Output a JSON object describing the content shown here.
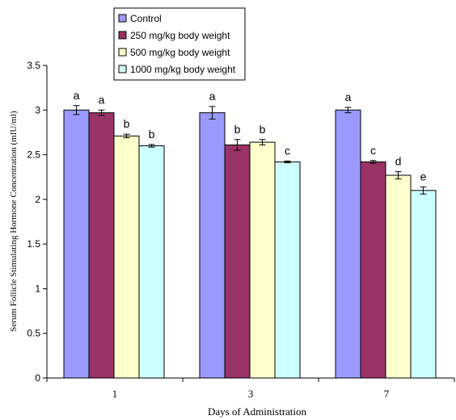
{
  "chart_data": {
    "type": "bar",
    "title": "",
    "xlabel": "Days of Administration",
    "ylabel": "Serum Follicle Stimulating Hormone Concentration (mIU/ml)",
    "ylim": [
      0,
      3.5
    ],
    "yticks": [
      "0",
      "0.5",
      "1",
      "1.5",
      "2",
      "2.5",
      "3",
      "3.5"
    ],
    "categories": [
      "1",
      "3",
      "7"
    ],
    "grid": false,
    "legend_position": "top",
    "series": [
      {
        "name": "Control",
        "color": "#9999ff",
        "values": [
          3.0,
          2.97,
          3.0
        ],
        "errors": [
          0.05,
          0.07,
          0.03
        ],
        "letters": [
          "a",
          "a",
          "a"
        ]
      },
      {
        "name": "250 mg/kg body weight",
        "color": "#993366",
        "values": [
          2.97,
          2.61,
          2.42
        ],
        "errors": [
          0.03,
          0.06,
          0.015
        ],
        "letters": [
          "a",
          "b",
          "c"
        ]
      },
      {
        "name": "500 mg/kg body weight",
        "color": "#ffffcc",
        "values": [
          2.71,
          2.64,
          2.27
        ],
        "errors": [
          0.02,
          0.03,
          0.04
        ],
        "letters": [
          "b",
          "b",
          "d"
        ]
      },
      {
        "name": "1000 mg/kg body weight",
        "color": "#ccffff",
        "values": [
          2.6,
          2.42,
          2.1
        ],
        "errors": [
          0.015,
          0.01,
          0.04
        ],
        "letters": [
          "b",
          "c",
          "e"
        ]
      }
    ]
  }
}
